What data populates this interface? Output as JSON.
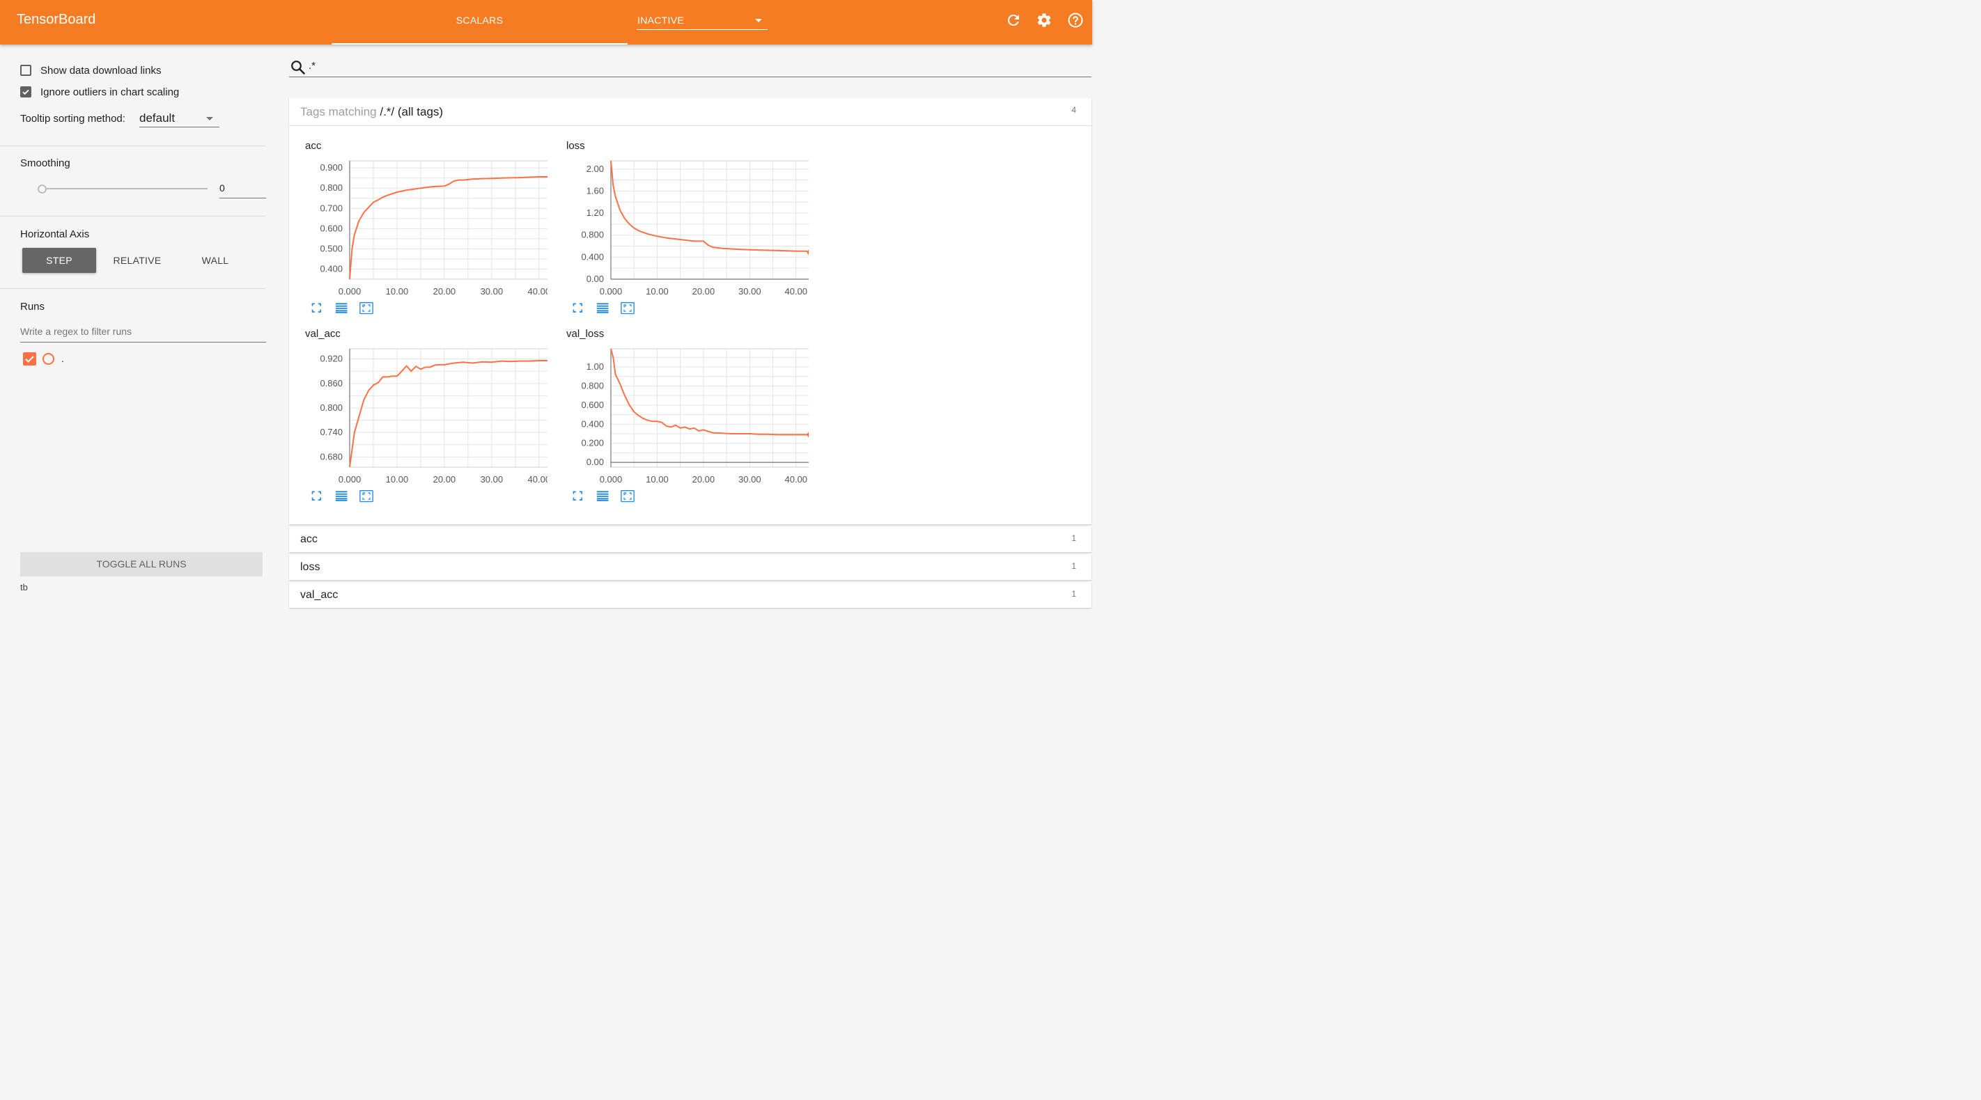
{
  "app": {
    "title": "TensorBoard"
  },
  "header": {
    "active_tab": "SCALARS",
    "inactive_select": "INACTIVE",
    "icons": [
      "refresh-icon",
      "gear-icon",
      "help-icon"
    ]
  },
  "sidebar": {
    "show_download_links": {
      "label": "Show data download links",
      "checked": false
    },
    "ignore_outliers": {
      "label": "Ignore outliers in chart scaling",
      "checked": true
    },
    "tooltip_sorting": {
      "label": "Tooltip sorting method:",
      "value": "default"
    },
    "smoothing": {
      "label": "Smoothing",
      "value": "0",
      "level": 0
    },
    "horizontal_axis": {
      "label": "Horizontal Axis",
      "options": [
        "STEP",
        "RELATIVE",
        "WALL"
      ],
      "selected": "STEP"
    },
    "runs": {
      "label": "Runs",
      "filter_placeholder": "Write a regex to filter runs",
      "items": [
        {
          "name": ".",
          "checked": true
        }
      ]
    },
    "toggle_all": "TOGGLE ALL RUNS",
    "footer": "tb"
  },
  "search": {
    "value": ".*"
  },
  "tag_group": {
    "prefix": "Tags matching ",
    "regex": "/.*/",
    "suffix": "(all tags)",
    "count": "4"
  },
  "accent": "#ff7043",
  "chart_data": [
    {
      "type": "line",
      "title": "acc",
      "xlim": [
        0,
        44
      ],
      "ylim": [
        0.35,
        0.935
      ],
      "xticks": [
        "0.000",
        "10.00",
        "20.00",
        "30.00",
        "40.00"
      ],
      "yticks": [
        "0.900",
        "0.800",
        "0.700",
        "0.600",
        "0.500",
        "0.400"
      ],
      "x": [
        0,
        0.5,
        1,
        2,
        3,
        4,
        5,
        6,
        7,
        8,
        10,
        12,
        13,
        15,
        17,
        18,
        20,
        21,
        22,
        23,
        24,
        26,
        28,
        30,
        32,
        34,
        36,
        38,
        40,
        42,
        43
      ],
      "y": [
        0.35,
        0.5,
        0.57,
        0.64,
        0.68,
        0.705,
        0.73,
        0.742,
        0.755,
        0.765,
        0.78,
        0.79,
        0.793,
        0.8,
        0.806,
        0.808,
        0.81,
        0.82,
        0.835,
        0.84,
        0.84,
        0.845,
        0.847,
        0.848,
        0.85,
        0.851,
        0.852,
        0.854,
        0.856,
        0.856,
        0.857
      ],
      "grid": true
    },
    {
      "type": "line",
      "title": "loss",
      "xlim": [
        0,
        45
      ],
      "ylim": [
        0,
        2.15
      ],
      "xticks": [
        "0.000",
        "10.00",
        "20.00",
        "30.00",
        "40.00"
      ],
      "yticks": [
        "2.00",
        "1.60",
        "1.20",
        "0.800",
        "0.400",
        "0.00"
      ],
      "x": [
        0,
        0.5,
        1,
        2,
        3,
        4,
        5,
        6,
        7,
        8,
        10,
        12,
        14,
        16,
        18,
        20,
        21,
        22,
        24,
        26,
        28,
        30,
        32,
        34,
        36,
        38,
        40,
        42,
        43
      ],
      "y": [
        2.15,
        1.7,
        1.5,
        1.25,
        1.1,
        1.0,
        0.93,
        0.88,
        0.85,
        0.82,
        0.78,
        0.75,
        0.73,
        0.71,
        0.69,
        0.69,
        0.62,
        0.58,
        0.56,
        0.55,
        0.54,
        0.535,
        0.53,
        0.525,
        0.52,
        0.515,
        0.51,
        0.51,
        0.49
      ],
      "grid": true
    },
    {
      "type": "line",
      "title": "val_acc",
      "xlim": [
        0,
        44
      ],
      "ylim": [
        0.655,
        0.945
      ],
      "xticks": [
        "0.000",
        "10.00",
        "20.00",
        "30.00",
        "40.00"
      ],
      "yticks": [
        "0.920",
        "0.860",
        "0.800",
        "0.740",
        "0.680"
      ],
      "x": [
        0,
        1,
        2,
        3,
        4,
        5,
        6,
        7,
        8,
        9,
        10,
        11,
        12,
        13,
        14,
        15,
        16,
        17,
        18,
        19,
        20,
        22,
        24,
        26,
        28,
        30,
        32,
        34,
        36,
        38,
        40,
        42,
        43
      ],
      "y": [
        0.655,
        0.74,
        0.78,
        0.82,
        0.843,
        0.856,
        0.862,
        0.876,
        0.876,
        0.878,
        0.878,
        0.89,
        0.903,
        0.89,
        0.902,
        0.895,
        0.9,
        0.9,
        0.905,
        0.906,
        0.906,
        0.91,
        0.912,
        0.91,
        0.913,
        0.912,
        0.915,
        0.914,
        0.915,
        0.915,
        0.916,
        0.916,
        0.916
      ],
      "grid": true
    },
    {
      "type": "line",
      "title": "val_loss",
      "xlim": [
        0,
        45
      ],
      "ylim": [
        -0.05,
        1.19
      ],
      "xticks": [
        "0.000",
        "10.00",
        "20.00",
        "30.00",
        "40.00"
      ],
      "yticks": [
        "1.00",
        "0.800",
        "0.600",
        "0.400",
        "0.200",
        "0.00"
      ],
      "x": [
        0,
        0.5,
        1,
        2,
        3,
        4,
        5,
        6,
        7,
        8,
        9,
        10,
        11,
        12,
        13,
        14,
        15,
        16,
        17,
        18,
        19,
        20,
        22,
        24,
        26,
        28,
        30,
        32,
        34,
        36,
        38,
        40,
        42,
        43
      ],
      "y": [
        1.19,
        1.1,
        0.92,
        0.82,
        0.7,
        0.6,
        0.53,
        0.49,
        0.46,
        0.44,
        0.43,
        0.43,
        0.42,
        0.38,
        0.37,
        0.39,
        0.36,
        0.37,
        0.35,
        0.36,
        0.33,
        0.34,
        0.31,
        0.305,
        0.3,
        0.3,
        0.3,
        0.295,
        0.295,
        0.29,
        0.29,
        0.29,
        0.29,
        0.29
      ],
      "grid": true
    }
  ],
  "collapsed_groups": [
    {
      "label": "acc",
      "count": "1"
    },
    {
      "label": "loss",
      "count": "1"
    },
    {
      "label": "val_acc",
      "count": "1"
    }
  ]
}
